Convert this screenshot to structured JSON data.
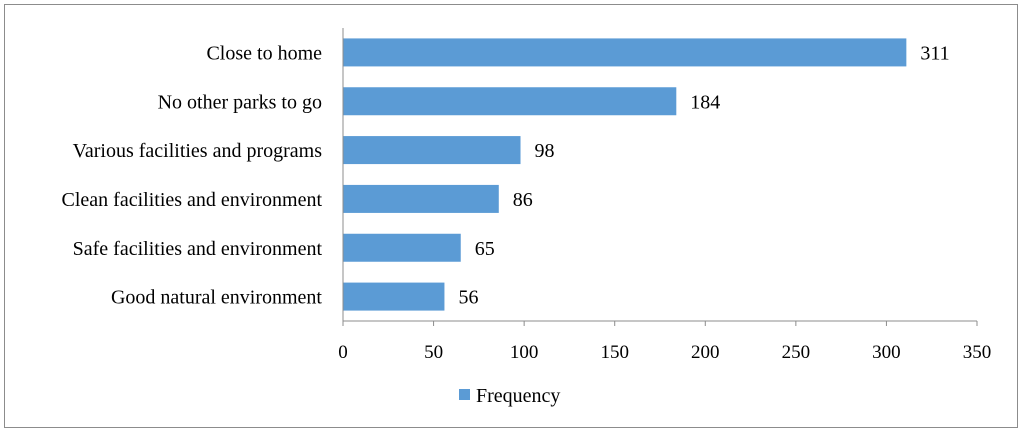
{
  "chart_data": {
    "type": "bar",
    "orientation": "horizontal",
    "categories": [
      "Close to home",
      "No other parks to go",
      "Various facilities and programs",
      "Clean facilities and environment",
      "Safe facilities and environment",
      "Good natural environment"
    ],
    "series": [
      {
        "name": "Frequency",
        "values": [
          311,
          184,
          98,
          86,
          65,
          56
        ]
      }
    ],
    "xlim": [
      0,
      350
    ],
    "xticks": [
      0,
      50,
      100,
      150,
      200,
      250,
      300,
      350
    ],
    "xtick_labels": [
      "0",
      "50",
      "100",
      "150",
      "200",
      "250",
      "300",
      "350"
    ],
    "title": "",
    "xlabel": "",
    "ylabel": "",
    "grid": false,
    "legend": "bottom",
    "data_labels": true,
    "bar_color": "#5b9bd5"
  }
}
